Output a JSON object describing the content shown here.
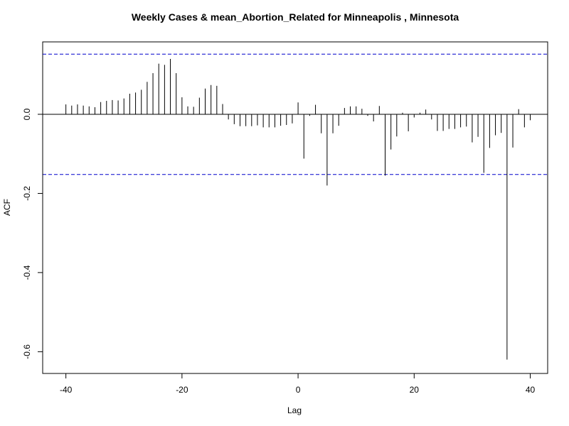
{
  "chart_data": {
    "type": "bar",
    "title": "Weekly Cases & mean_Abortion_Related for Minneapolis , Minnesota",
    "xlabel": "Lag",
    "ylabel": "ACF",
    "xlim": [
      -44,
      43
    ],
    "ylim": [
      -0.655,
      0.183
    ],
    "x_ticks": [
      -40,
      -20,
      0,
      20,
      40
    ],
    "x_tick_labels": [
      "-40",
      "-20",
      "0",
      "20",
      "40"
    ],
    "y_ticks": [
      0.0,
      -0.2,
      -0.4,
      -0.6
    ],
    "y_tick_labels": [
      "0.0",
      "-0.2",
      "-0.4",
      "-0.6"
    ],
    "confidence_bound": 0.152,
    "confidence_color": "#0000cc",
    "bar_color": "#000000",
    "lags": [
      -40,
      -39,
      -38,
      -37,
      -36,
      -35,
      -34,
      -33,
      -32,
      -31,
      -30,
      -29,
      -28,
      -27,
      -26,
      -25,
      -24,
      -23,
      -22,
      -21,
      -20,
      -19,
      -18,
      -17,
      -16,
      -15,
      -14,
      -13,
      -12,
      -11,
      -10,
      -9,
      -8,
      -7,
      -6,
      -5,
      -4,
      -3,
      -2,
      -1,
      0,
      1,
      2,
      3,
      4,
      5,
      6,
      7,
      8,
      9,
      10,
      11,
      12,
      13,
      14,
      15,
      16,
      17,
      18,
      19,
      20,
      21,
      22,
      23,
      24,
      25,
      26,
      27,
      28,
      29,
      30,
      31,
      32,
      33,
      34,
      35,
      36,
      37,
      38,
      39,
      40
    ],
    "values": [
      0.025,
      0.022,
      0.025,
      0.022,
      0.02,
      0.018,
      0.031,
      0.034,
      0.036,
      0.035,
      0.04,
      0.052,
      0.055,
      0.062,
      0.082,
      0.104,
      0.128,
      0.125,
      0.14,
      0.104,
      0.043,
      0.02,
      0.019,
      0.042,
      0.065,
      0.074,
      0.072,
      0.026,
      -0.013,
      -0.025,
      -0.03,
      -0.03,
      -0.03,
      -0.028,
      -0.033,
      -0.033,
      -0.033,
      -0.029,
      -0.027,
      -0.023,
      0.03,
      -0.112,
      -0.004,
      0.024,
      -0.048,
      -0.18,
      -0.048,
      -0.029,
      0.016,
      0.02,
      0.02,
      0.014,
      -0.004,
      -0.018,
      0.021,
      -0.155,
      -0.089,
      -0.056,
      0.004,
      -0.043,
      -0.008,
      0.004,
      0.012,
      -0.013,
      -0.042,
      -0.042,
      -0.037,
      -0.037,
      -0.033,
      -0.031,
      -0.071,
      -0.057,
      -0.148,
      -0.085,
      -0.053,
      -0.047,
      -0.62,
      -0.084,
      0.013,
      -0.033,
      -0.015
    ]
  }
}
